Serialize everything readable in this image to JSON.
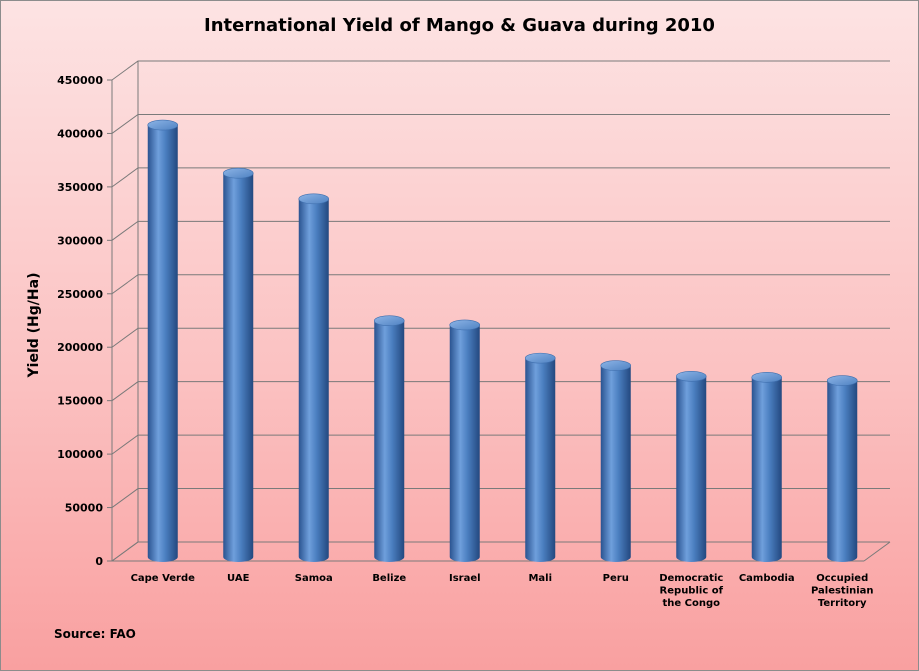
{
  "chart_data": {
    "type": "bar",
    "title": "International Yield of Mango & Guava during 2010",
    "xlabel": "",
    "ylabel": "Yield (Hg/Ha)",
    "ylim": [
      0,
      450000
    ],
    "yticks": [
      "0",
      "50000",
      "100000",
      "150000",
      "200000",
      "250000",
      "300000",
      "350000",
      "400000",
      "450000"
    ],
    "categories": [
      [
        "Cape Verde"
      ],
      [
        "UAE"
      ],
      [
        "Samoa"
      ],
      [
        "Belize"
      ],
      [
        "Israel"
      ],
      [
        "Mali"
      ],
      [
        "Peru"
      ],
      [
        "Democratic",
        "Republic of",
        "the Congo"
      ],
      [
        "Cambodia"
      ],
      [
        "Occupied",
        "Palestinian",
        "Territory"
      ]
    ],
    "values": [
      405000,
      360000,
      336000,
      222000,
      218000,
      187000,
      180000,
      170000,
      169000,
      166000
    ],
    "grid": true,
    "legend": "none",
    "bar_color": "#4a7ebf",
    "style": "3d-cylinder"
  },
  "footer": {
    "source": "Source: FAO"
  }
}
